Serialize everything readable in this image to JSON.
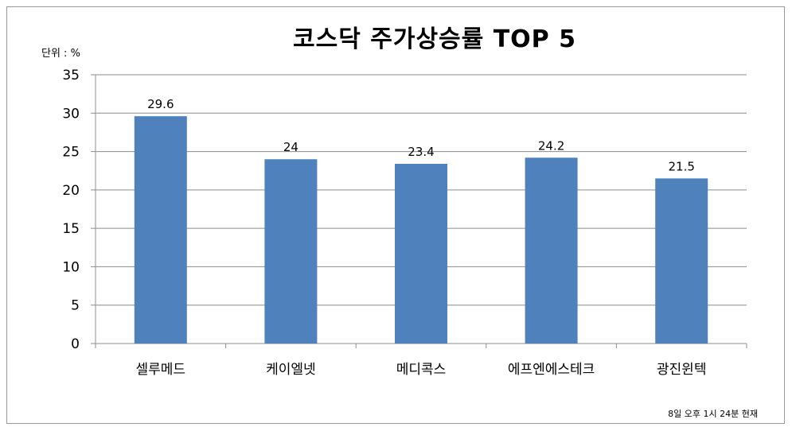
{
  "chart_data": {
    "type": "bar",
    "title": "코스닥 주가상승률  TOP 5",
    "unit_label": "단위 : %",
    "note": "8일 오후 1시 24분 현재",
    "categories": [
      "셀루메드",
      "케이엘넷",
      "메디콕스",
      "에프엔에스테크",
      "광진윈텍"
    ],
    "values": [
      29.6,
      24,
      23.4,
      24.2,
      21.5
    ],
    "value_labels": [
      "29.6",
      "24",
      "23.4",
      "24.2",
      "21.5"
    ],
    "yticks": [
      "0",
      "5",
      "10",
      "15",
      "20",
      "25",
      "30",
      "35"
    ],
    "ylim": [
      0,
      35
    ],
    "grid": true,
    "bar_color": "#4f81bd",
    "grid_color": "#8c8c8c"
  }
}
